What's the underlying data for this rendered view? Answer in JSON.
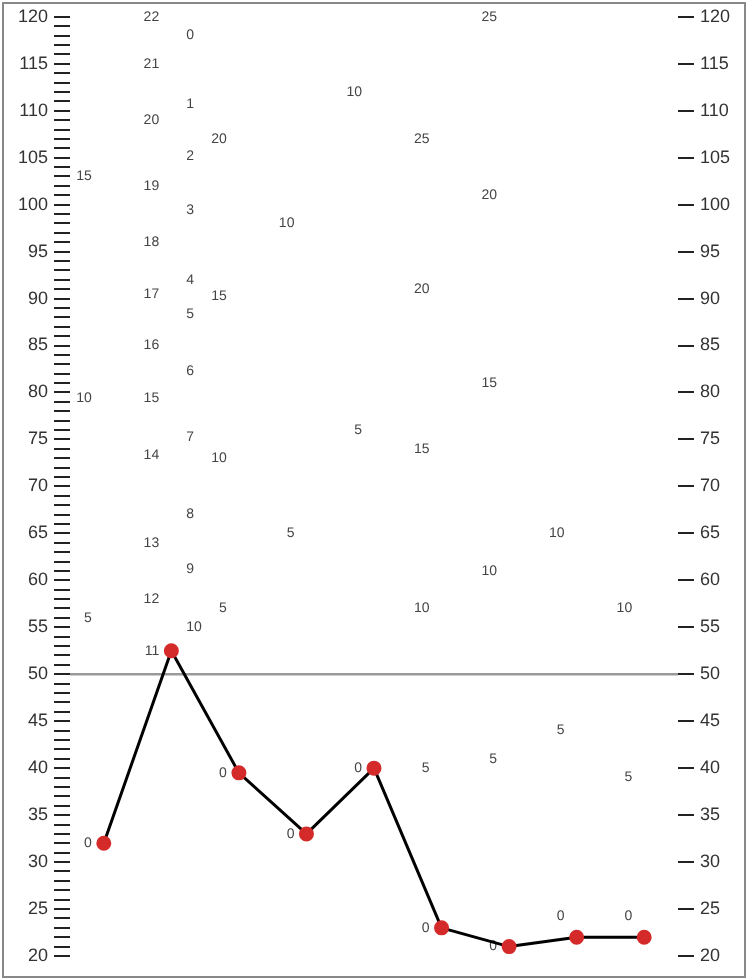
{
  "chart_data": {
    "type": "line",
    "categories": [
      null,
      null,
      null,
      null,
      null,
      null,
      null,
      null,
      null
    ],
    "series": [
      {
        "color": "#000000",
        "colors": [
          "#d42a2a",
          "#d42a2a",
          "#d42a2a",
          "#d42a2a",
          "#d42a2a",
          "#d42a2a",
          "#d42a2a",
          "#d42a2a",
          "#d42a2a"
        ],
        "values": [
          32,
          52.5,
          39.5,
          33,
          40,
          23,
          21,
          22,
          22
        ]
      }
    ],
    "marker": "circle",
    "line_style": "solid",
    "grid": false,
    "tick_labels": "y",
    "ylim": [
      20,
      120
    ],
    "yticks": [
      20,
      {
        "value": 21,
        "label": null
      },
      {
        "value": 22,
        "label": null
      },
      {
        "value": 23,
        "label": null
      },
      {
        "value": 24,
        "label": null
      },
      25,
      {
        "value": 26,
        "label": null
      },
      {
        "value": 27,
        "label": null
      },
      {
        "value": 28,
        "label": null
      },
      {
        "value": 29,
        "label": null
      },
      30,
      {
        "value": 31,
        "label": null
      },
      {
        "value": 32,
        "label": null
      },
      {
        "value": 33,
        "label": null
      },
      {
        "value": 34,
        "label": null
      },
      35,
      {
        "value": 36,
        "label": null
      },
      {
        "value": 37,
        "label": null
      },
      {
        "value": 38,
        "label": null
      },
      {
        "value": 39,
        "label": null
      },
      40,
      {
        "value": 41,
        "label": null
      },
      {
        "value": 42,
        "label": null
      },
      {
        "value": 43,
        "label": null
      },
      {
        "value": 44,
        "label": null
      },
      45,
      {
        "value": 46,
        "label": null
      },
      {
        "value": 47,
        "label": null
      },
      {
        "value": 48,
        "label": null
      },
      {
        "value": 49,
        "label": null
      },
      50,
      {
        "value": 51,
        "label": null
      },
      {
        "value": 52,
        "label": null
      },
      {
        "value": 53,
        "label": null
      },
      {
        "value": 54,
        "label": null
      },
      55,
      {
        "value": 56,
        "label": null
      },
      {
        "value": 57,
        "label": null
      },
      {
        "value": 58,
        "label": null
      },
      {
        "value": 59,
        "label": null
      },
      60,
      {
        "value": 61,
        "label": null
      },
      {
        "value": 62,
        "label": null
      },
      {
        "value": 63,
        "label": null
      },
      {
        "value": 64,
        "label": null
      },
      65,
      {
        "value": 66,
        "label": null
      },
      {
        "value": 67,
        "label": null
      },
      {
        "value": 68,
        "label": null
      },
      {
        "value": 69,
        "label": null
      },
      70,
      {
        "value": 71,
        "label": null
      },
      {
        "value": 72,
        "label": null
      },
      {
        "value": 73,
        "label": null
      },
      {
        "value": 74,
        "label": null
      },
      75,
      {
        "value": 76,
        "label": null
      },
      {
        "value": 77,
        "label": null
      },
      {
        "value": 78,
        "label": null
      },
      {
        "value": 79,
        "label": null
      },
      80,
      {
        "value": 81,
        "label": null
      },
      {
        "value": 82,
        "label": null
      },
      {
        "value": 83,
        "label": null
      },
      {
        "value": 84,
        "label": null
      },
      85,
      {
        "value": 86,
        "label": null
      },
      {
        "value": 87,
        "label": null
      },
      {
        "value": 88,
        "label": null
      },
      {
        "value": 89,
        "label": null
      },
      90,
      {
        "value": 91,
        "label": null
      },
      {
        "value": 92,
        "label": null
      },
      {
        "value": 93,
        "label": null
      },
      {
        "value": 94,
        "label": null
      },
      95,
      {
        "value": 96,
        "label": null
      },
      {
        "value": 97,
        "label": null
      },
      {
        "value": 98,
        "label": null
      },
      {
        "value": 99,
        "label": null
      },
      100,
      {
        "value": 101,
        "label": null
      },
      {
        "value": 102,
        "label": null
      },
      {
        "value": 103,
        "label": null
      },
      {
        "value": 104,
        "label": null
      },
      105,
      {
        "value": 106,
        "label": null
      },
      {
        "value": 107,
        "label": null
      },
      {
        "value": 108,
        "label": null
      },
      {
        "value": 109,
        "label": null
      },
      110,
      {
        "value": 111,
        "label": null
      },
      {
        "value": 112,
        "label": null
      },
      {
        "value": 113,
        "label": null
      },
      {
        "value": 114,
        "label": null
      },
      115,
      {
        "value": 116,
        "label": null
      },
      {
        "value": 117,
        "label": null
      },
      {
        "value": 118,
        "label": null
      },
      {
        "value": 119,
        "label": null
      },
      120
    ],
    "y2lim": [
      20,
      120
    ],
    "y2ticks": [
      20,
      25,
      30,
      35,
      40,
      45,
      50,
      55,
      60,
      65,
      70,
      75,
      80,
      85,
      90,
      95,
      100,
      105,
      110,
      115,
      120
    ],
    "ref_lines": [
      {
        "axis": "y",
        "value": 50,
        "color": "#999999"
      }
    ],
    "annotations": [
      "15",
      "10",
      "5",
      "0",
      "22",
      "21",
      "20",
      "19",
      "18",
      "17",
      "16",
      "15",
      "14",
      "13",
      "12",
      "11",
      "0",
      "1",
      "2",
      "3",
      "4",
      "5",
      "6",
      "7",
      "8",
      "9",
      "10",
      "20",
      "15",
      "10",
      "5",
      "0",
      "10",
      "5",
      "0",
      "10",
      "5",
      "0",
      "25",
      "20",
      "15",
      "10",
      "5",
      "0",
      "25",
      "20",
      "15",
      "10",
      "5",
      "0",
      "10",
      "5",
      "0",
      "10",
      "5",
      "0"
    ]
  }
}
